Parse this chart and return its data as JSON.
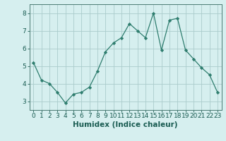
{
  "x": [
    0,
    1,
    2,
    3,
    4,
    5,
    6,
    7,
    8,
    9,
    10,
    11,
    12,
    13,
    14,
    15,
    16,
    17,
    18,
    19,
    20,
    21,
    22,
    23
  ],
  "y": [
    5.2,
    4.2,
    4.0,
    3.5,
    2.9,
    3.4,
    3.5,
    3.8,
    4.7,
    5.8,
    6.3,
    6.6,
    7.4,
    7.0,
    6.6,
    8.0,
    5.9,
    7.6,
    7.7,
    5.9,
    5.4,
    4.9,
    4.5,
    3.5
  ],
  "xlabel": "Humidex (Indice chaleur)",
  "ylim": [
    2.5,
    8.5
  ],
  "xlim": [
    -0.5,
    23.5
  ],
  "yticks": [
    3,
    4,
    5,
    6,
    7,
    8
  ],
  "xticks": [
    0,
    1,
    2,
    3,
    4,
    5,
    6,
    7,
    8,
    9,
    10,
    11,
    12,
    13,
    14,
    15,
    16,
    17,
    18,
    19,
    20,
    21,
    22,
    23
  ],
  "line_color": "#2e7d6e",
  "marker": "D",
  "marker_size": 2.2,
  "bg_color": "#d6efef",
  "grid_color": "#aacccc",
  "axis_color": "#4a7a72",
  "font_color": "#1a5c52",
  "xlabel_fontsize": 7.5,
  "tick_fontsize": 6.5
}
